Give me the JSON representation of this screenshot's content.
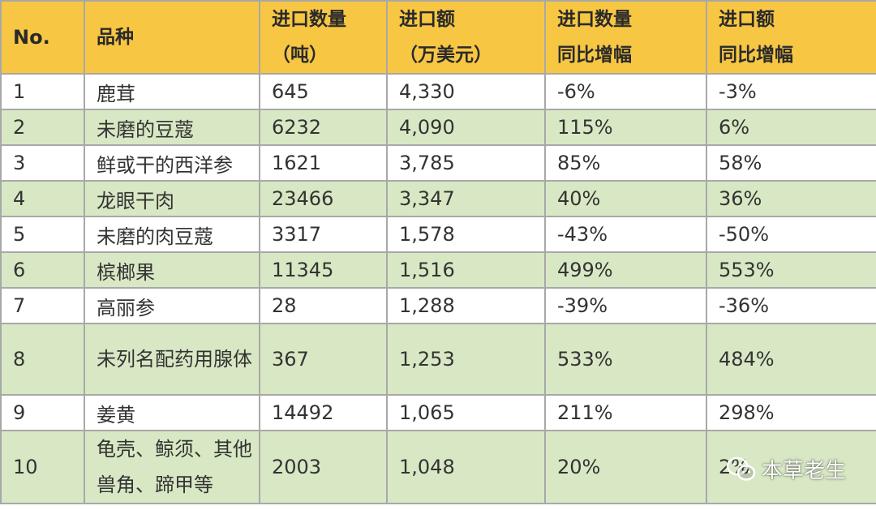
{
  "table": {
    "headers": {
      "no": "No.",
      "variety": "品种",
      "qty": [
        "进口数量",
        "（吨）"
      ],
      "amount": [
        "进口额",
        "（万美元）"
      ],
      "qty_yoy": [
        "进口数量",
        "同比增幅"
      ],
      "amount_yoy": [
        "进口额",
        "同比增幅"
      ]
    },
    "rows": [
      {
        "no": "1",
        "variety": "鹿茸",
        "qty": "645",
        "amount": "4,330",
        "qty_yoy": "-6%",
        "amount_yoy": "-3%"
      },
      {
        "no": "2",
        "variety": "未磨的豆蔻",
        "qty": "6232",
        "amount": "4,090",
        "qty_yoy": "115%",
        "amount_yoy": "6%"
      },
      {
        "no": "3",
        "variety": "鲜或干的西洋参",
        "qty": "1621",
        "amount": "3,785",
        "qty_yoy": "85%",
        "amount_yoy": "58%"
      },
      {
        "no": "4",
        "variety": "龙眼干肉",
        "qty": "23466",
        "amount": "3,347",
        "qty_yoy": "40%",
        "amount_yoy": "36%"
      },
      {
        "no": "5",
        "variety": "未磨的肉豆蔻",
        "qty": "3317",
        "amount": "1,578",
        "qty_yoy": "-43%",
        "amount_yoy": "-50%"
      },
      {
        "no": "6",
        "variety": "槟榔果",
        "qty": "11345",
        "amount": "1,516",
        "qty_yoy": "499%",
        "amount_yoy": "553%"
      },
      {
        "no": "7",
        "variety": "高丽参",
        "qty": "28",
        "amount": "1,288",
        "qty_yoy": "-39%",
        "amount_yoy": "-36%"
      },
      {
        "no": "8",
        "variety": "未列名配药用腺体",
        "qty": "367",
        "amount": "1,253",
        "qty_yoy": "533%",
        "amount_yoy": "484%"
      },
      {
        "no": "9",
        "variety": "姜黄",
        "qty": "14492",
        "amount": "1,065",
        "qty_yoy": "211%",
        "amount_yoy": "298%"
      },
      {
        "no": "10",
        "variety": "龟壳、鲸须、其他兽角、蹄甲等",
        "qty": "2003",
        "amount": "1,048",
        "qty_yoy": "20%",
        "amount_yoy": "2%"
      }
    ]
  },
  "watermark": {
    "icon": "wechat-icon",
    "text": "本草老生"
  }
}
